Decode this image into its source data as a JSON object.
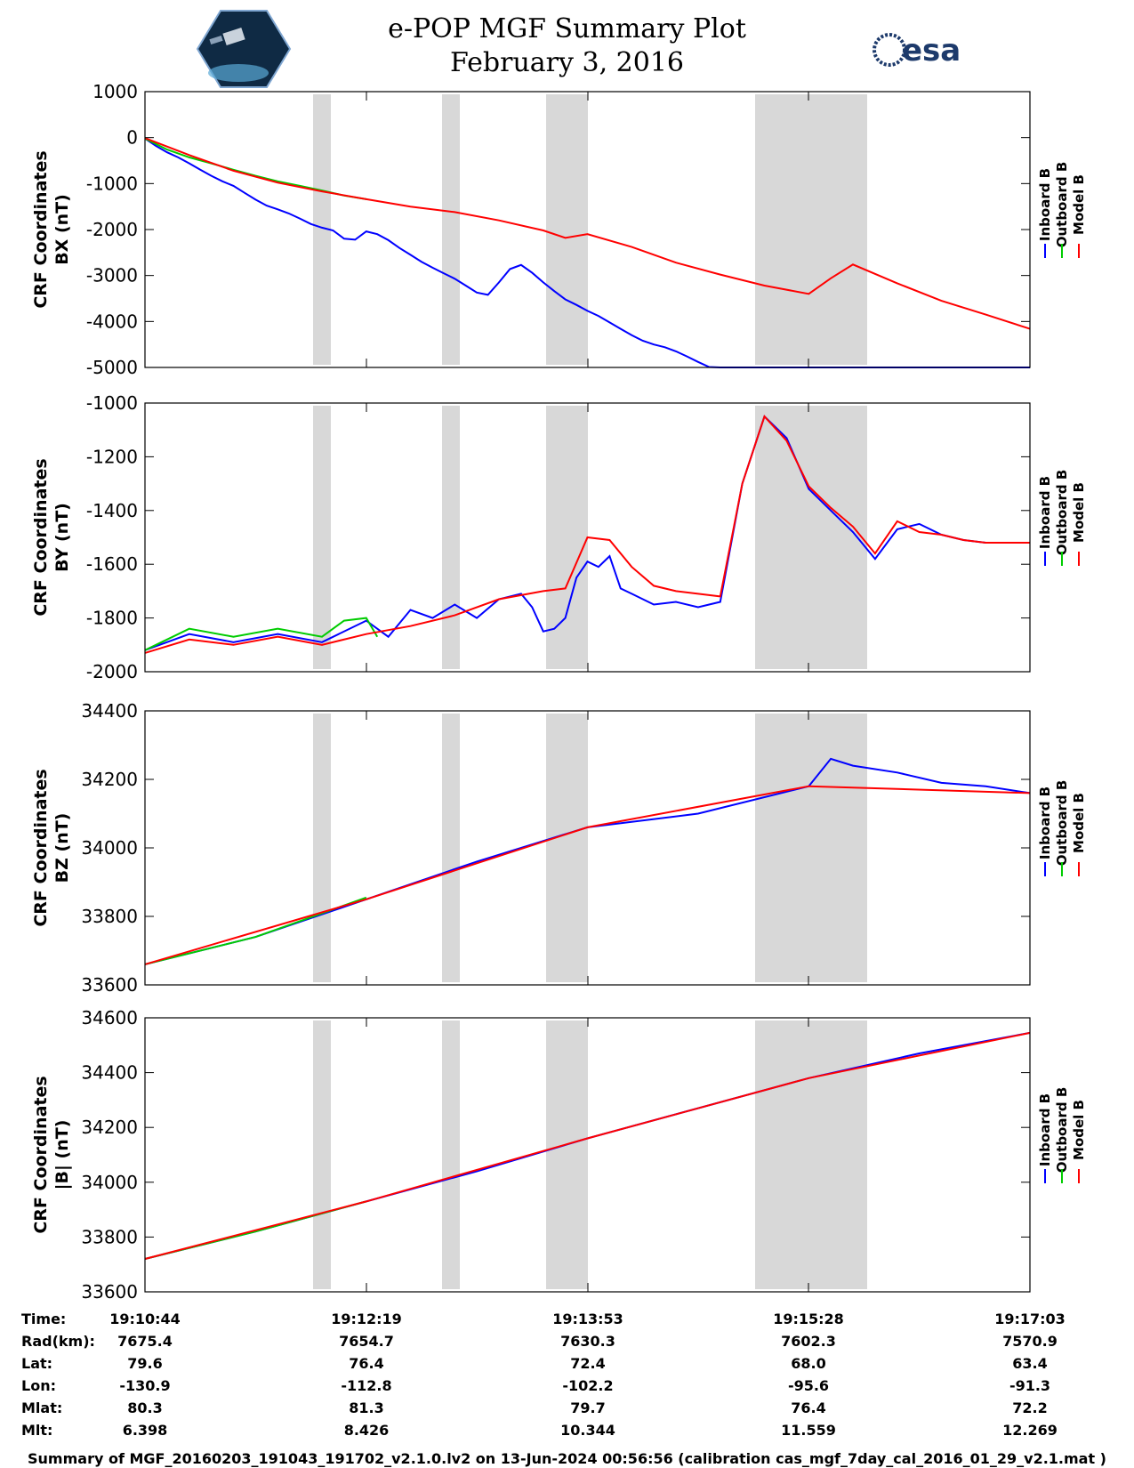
{
  "header": {
    "title_line1": "e-POP MGF Summary Plot",
    "title_line2": "February 3, 2016",
    "left_logo": "cassiope-satellite-logo",
    "right_logo_text": "esa",
    "colors": {
      "esa": "#1d3a6b"
    }
  },
  "legend": {
    "labels": [
      "Inboard B",
      "Outboard B",
      "Model B"
    ],
    "colors": [
      "#0000ff",
      "#00cc00",
      "#ff0000"
    ]
  },
  "chart_data": [
    {
      "type": "line",
      "ylabel_line1": "CRF Coordinates",
      "ylabel_line2": "BX (nT)",
      "ylim": [
        -5000,
        1000
      ],
      "yticks": [
        1000,
        0,
        -1000,
        -2000,
        -3000,
        -4000,
        -5000
      ],
      "series": [
        {
          "name": "Inboard B",
          "color": "#0000ff",
          "x": [
            0,
            0.05,
            0.1,
            0.15,
            0.2,
            0.25,
            0.3,
            0.35,
            0.4,
            0.45,
            0.5,
            0.55,
            0.6,
            0.65,
            0.7,
            0.75,
            0.8,
            0.85,
            0.9,
            0.95,
            1.0,
            1.05,
            1.1,
            1.15,
            1.2,
            1.25,
            1.3,
            1.35,
            1.4,
            1.45,
            1.5,
            1.55,
            1.6,
            1.65,
            1.7,
            1.75,
            1.8,
            1.85,
            1.9,
            1.95,
            2.0,
            2.05,
            2.1,
            2.15,
            2.2,
            2.25,
            2.3,
            2.35,
            2.4,
            2.45,
            2.5,
            2.55,
            2.6,
            2.65,
            2.7,
            2.75,
            2.8,
            2.85,
            2.9,
            2.95,
            3.0,
            3.05,
            3.1,
            3.15,
            3.2,
            3.25,
            3.3,
            3.35,
            3.4,
            3.45,
            3.5,
            3.55,
            3.6,
            3.65,
            3.7,
            3.75,
            3.8,
            3.85,
            3.9,
            3.95,
            4.0
          ],
          "values": [
            -20,
            -180,
            -320,
            -430,
            -560,
            -700,
            -830,
            -950,
            -1050,
            -1200,
            -1350,
            -1480,
            -1560,
            -1650,
            -1760,
            -1880,
            -1960,
            -2020,
            -2200,
            -2220,
            -2040,
            -2100,
            -2230,
            -2400,
            -2550,
            -2700,
            -2830,
            -2950,
            -3070,
            -3220,
            -3370,
            -3420,
            -3150,
            -2860,
            -2770,
            -2940,
            -3150,
            -3340,
            -3520,
            -3640,
            -3770,
            -3880,
            -4020,
            -4160,
            -4300,
            -4420,
            -4500,
            -4560,
            -4650,
            -4760,
            -4880,
            -4990,
            -5000,
            -5000,
            -5000,
            -5000,
            -5000,
            -5000,
            -5000,
            -5000,
            -5000,
            -5000,
            -5000,
            -5000,
            -5000,
            -5000,
            -5000,
            -5000,
            -5000,
            -5000,
            -5000,
            -5000,
            -5000,
            -5000,
            -5000,
            -5000,
            -5000,
            -5000,
            -5000,
            -5000,
            -5000
          ]
        },
        {
          "name": "Outboard B",
          "color": "#00cc00",
          "x": [
            0,
            0.1,
            0.2,
            0.3,
            0.4,
            0.5,
            0.6,
            0.7,
            0.8,
            0.9,
            1.0
          ],
          "values": [
            -20,
            -260,
            -430,
            -560,
            -700,
            -830,
            -950,
            -1050,
            -1150,
            -1260,
            -1340
          ]
        },
        {
          "name": "Model B",
          "color": "#ff0000",
          "x": [
            0,
            0.2,
            0.4,
            0.6,
            0.8,
            1.0,
            1.2,
            1.4,
            1.6,
            1.8,
            1.9,
            2.0,
            2.2,
            2.4,
            2.6,
            2.8,
            3.0,
            3.1,
            3.2,
            3.4,
            3.6,
            3.8,
            4.0
          ],
          "values": [
            -10,
            -380,
            -720,
            -980,
            -1170,
            -1340,
            -1500,
            -1620,
            -1800,
            -2020,
            -2180,
            -2100,
            -2380,
            -2720,
            -2980,
            -3220,
            -3400,
            -3060,
            -2760,
            -3170,
            -3550,
            -3850,
            -4160
          ]
        }
      ]
    },
    {
      "type": "line",
      "ylabel_line1": "CRF Coordinates",
      "ylabel_line2": "BY (nT)",
      "ylim": [
        -2000,
        -1000
      ],
      "yticks": [
        -1000,
        -1200,
        -1400,
        -1600,
        -1800,
        -2000
      ],
      "series": [
        {
          "name": "Inboard B",
          "color": "#0000ff",
          "x": [
            0,
            0.2,
            0.4,
            0.6,
            0.8,
            1.0,
            1.1,
            1.2,
            1.3,
            1.4,
            1.5,
            1.6,
            1.7,
            1.75,
            1.8,
            1.85,
            1.9,
            1.95,
            2.0,
            2.05,
            2.1,
            2.15,
            2.2,
            2.3,
            2.4,
            2.5,
            2.6,
            2.7,
            2.8,
            2.9,
            3.0,
            3.1,
            3.2,
            3.3,
            3.4,
            3.5,
            3.6,
            3.7,
            3.8,
            3.9,
            4.0
          ],
          "values": [
            -1920,
            -1860,
            -1890,
            -1860,
            -1890,
            -1810,
            -1870,
            -1770,
            -1800,
            -1750,
            -1800,
            -1730,
            -1710,
            -1760,
            -1850,
            -1840,
            -1800,
            -1650,
            -1590,
            -1610,
            -1570,
            -1690,
            -1710,
            -1750,
            -1740,
            -1760,
            -1740,
            -1300,
            -1050,
            -1130,
            -1320,
            -1400,
            -1480,
            -1580,
            -1470,
            -1450,
            -1490,
            -1510,
            -1520,
            -1520,
            -1520
          ]
        },
        {
          "name": "Outboard B",
          "color": "#00cc00",
          "x": [
            0,
            0.2,
            0.4,
            0.6,
            0.8,
            0.9,
            1.0,
            1.05
          ],
          "values": [
            -1920,
            -1840,
            -1870,
            -1840,
            -1870,
            -1810,
            -1800,
            -1870
          ]
        },
        {
          "name": "Model B",
          "color": "#ff0000",
          "x": [
            0,
            0.2,
            0.4,
            0.6,
            0.8,
            1.0,
            1.2,
            1.4,
            1.6,
            1.8,
            1.9,
            2.0,
            2.1,
            2.2,
            2.3,
            2.4,
            2.5,
            2.6,
            2.7,
            2.8,
            2.9,
            3.0,
            3.1,
            3.2,
            3.3,
            3.4,
            3.5,
            3.6,
            3.7,
            3.8,
            3.9,
            4.0
          ],
          "values": [
            -1930,
            -1880,
            -1900,
            -1870,
            -1900,
            -1860,
            -1830,
            -1790,
            -1730,
            -1700,
            -1690,
            -1500,
            -1510,
            -1610,
            -1680,
            -1700,
            -1710,
            -1720,
            -1300,
            -1050,
            -1140,
            -1310,
            -1390,
            -1460,
            -1560,
            -1440,
            -1480,
            -1490,
            -1510,
            -1520,
            -1520,
            -1520
          ]
        }
      ]
    },
    {
      "type": "line",
      "ylabel_line1": "CRF Coordinates",
      "ylabel_line2": "BZ (nT)",
      "ylim": [
        33600,
        34400
      ],
      "yticks": [
        34400,
        34200,
        34000,
        33800,
        33600
      ],
      "series": [
        {
          "name": "Inboard B",
          "color": "#0000ff",
          "x": [
            0,
            0.5,
            1.0,
            1.5,
            2.0,
            2.5,
            3.0,
            3.1,
            3.2,
            3.4,
            3.6,
            3.8,
            4.0
          ],
          "values": [
            33660,
            33740,
            33850,
            33960,
            34060,
            34100,
            34180,
            34260,
            34240,
            34220,
            34190,
            34180,
            34160
          ]
        },
        {
          "name": "Outboard B",
          "color": "#00cc00",
          "x": [
            0,
            0.5,
            1.0
          ],
          "values": [
            33660,
            33740,
            33855
          ]
        },
        {
          "name": "Model B",
          "color": "#ff0000",
          "x": [
            0,
            1.0,
            2.0,
            3.0,
            4.0
          ],
          "values": [
            33660,
            33850,
            34060,
            34180,
            34160
          ]
        }
      ]
    },
    {
      "type": "line",
      "ylabel_line1": "CRF Coordinates",
      "ylabel_line2": "|B| (nT)",
      "ylim": [
        33600,
        34600
      ],
      "yticks": [
        34600,
        34400,
        34200,
        34000,
        33800,
        33600
      ],
      "series": [
        {
          "name": "Inboard B",
          "color": "#0000ff",
          "x": [
            0,
            0.5,
            1.0,
            1.5,
            2.0,
            2.5,
            3.0,
            3.5,
            4.0
          ],
          "values": [
            33720,
            33820,
            33930,
            34040,
            34160,
            34270,
            34380,
            34470,
            34545
          ]
        },
        {
          "name": "Outboard B",
          "color": "#00cc00",
          "x": [
            0,
            0.5,
            1.0
          ],
          "values": [
            33720,
            33820,
            33930
          ]
        },
        {
          "name": "Model B",
          "color": "#ff0000",
          "x": [
            0,
            1.0,
            2.0,
            3.0,
            4.0
          ],
          "values": [
            33720,
            33930,
            34160,
            34380,
            34545
          ]
        }
      ]
    }
  ],
  "ephemeris": {
    "row_labels": [
      "Time:",
      "Rad(km):",
      "Lat:",
      "Lon:",
      "Mlat:",
      "Mlt:"
    ],
    "columns": [
      [
        "19:10:44",
        "7675.4",
        "79.6",
        "-130.9",
        "80.3",
        "6.398"
      ],
      [
        "19:12:19",
        "7654.7",
        "76.4",
        "-112.8",
        "81.3",
        "8.426"
      ],
      [
        "19:13:53",
        "7630.3",
        "72.4",
        "-102.2",
        "79.7",
        "10.344"
      ],
      [
        "19:15:28",
        "7602.3",
        "68.0",
        "-95.6",
        "76.4",
        "11.559"
      ],
      [
        "19:17:03",
        "7570.9",
        "63.4",
        "-91.3",
        "72.2",
        "12.269"
      ]
    ]
  },
  "footer": "Summary of MGF_20160203_191043_191702_v2.1.0.lv2 on 13-Jun-2024 00:56:56 (calibration cas_mgf_7day_cal_2016_01_29_v2.1.mat )"
}
